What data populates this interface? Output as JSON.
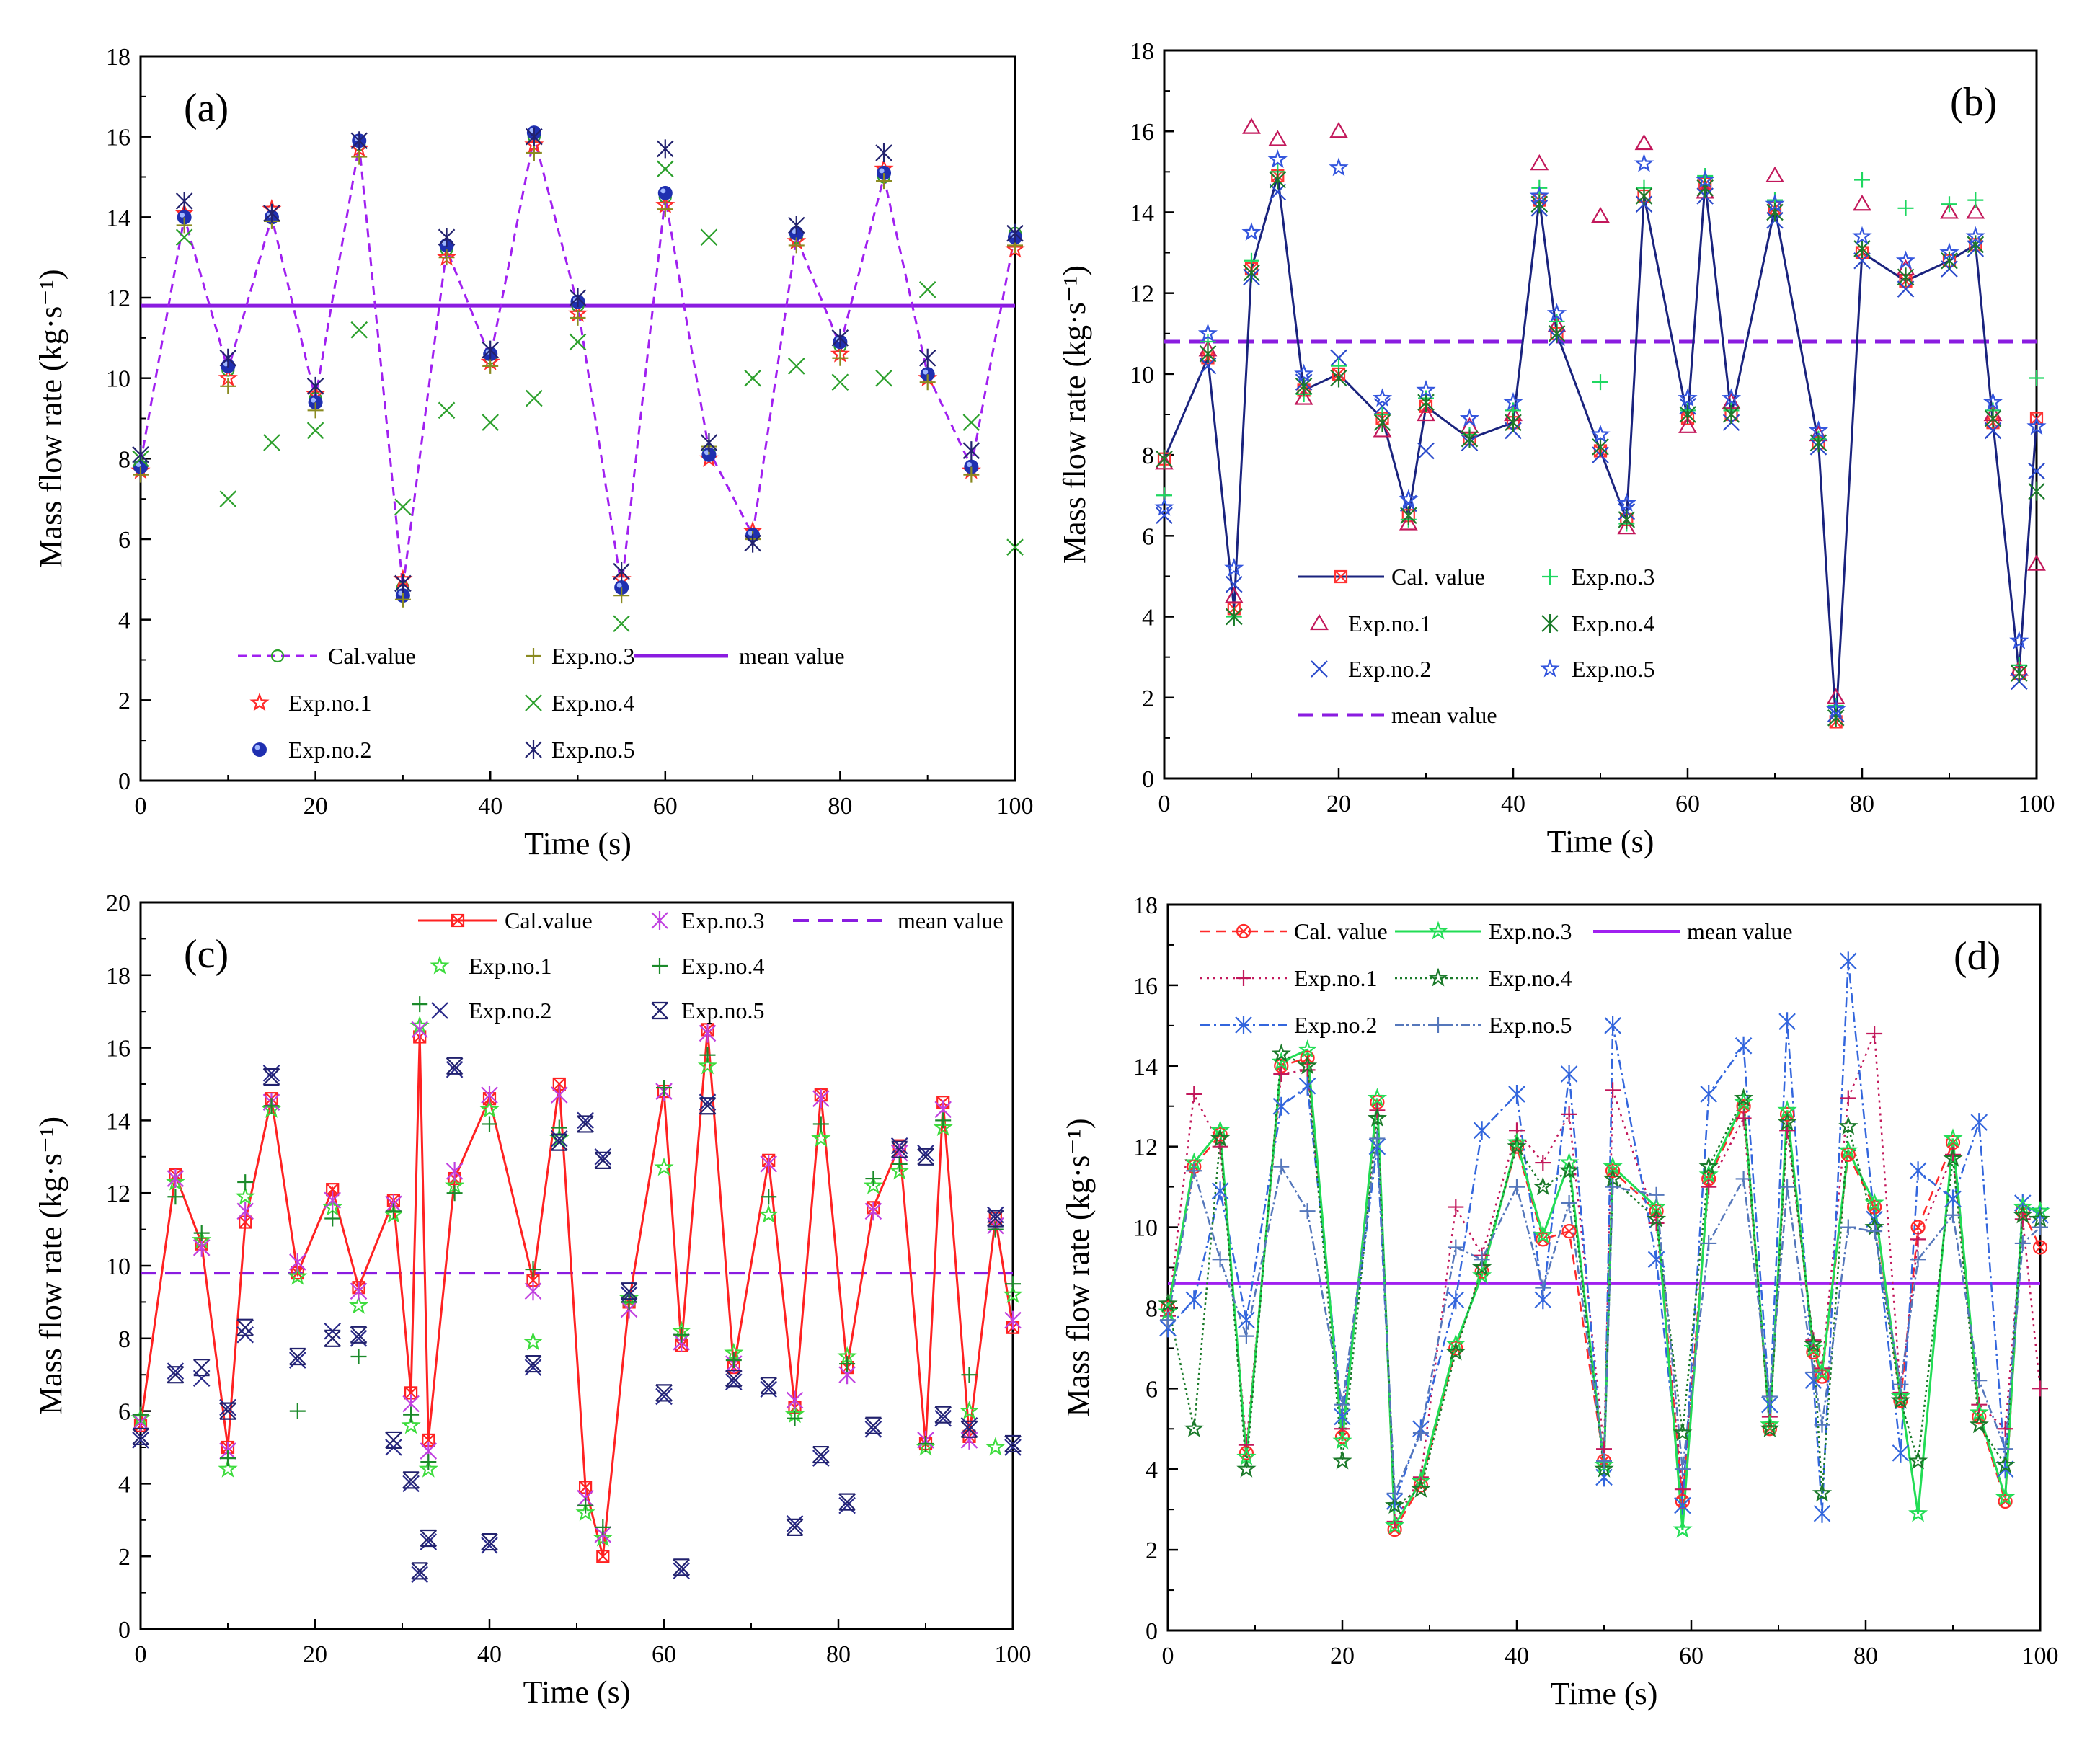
{
  "chart_data": [
    {
      "type": "line",
      "panel": "(a)",
      "xlabel": "Time (s)",
      "ylabel": "Mass flow rate (kg·s⁻¹)",
      "xlim": [
        0,
        100
      ],
      "ylim": [
        0,
        18
      ],
      "xticks": [
        0,
        20,
        40,
        60,
        80,
        100
      ],
      "yticks": [
        0,
        2,
        4,
        6,
        8,
        10,
        12,
        14,
        16,
        18
      ],
      "mean_value": 11.8,
      "legend_labels": [
        "Cal.value",
        "Exp.no.1",
        "Exp.no.2",
        "Exp.no.3",
        "Exp.no.4",
        "Exp.no.5",
        "mean value"
      ],
      "x": [
        0,
        5,
        10,
        15,
        20,
        25,
        30,
        35,
        40,
        45,
        50,
        55,
        60,
        65,
        70,
        75,
        80,
        85,
        90,
        95,
        100
      ],
      "series": [
        {
          "name": "Cal.value",
          "values": [
            7.9,
            14.0,
            10.2,
            14.0,
            9.5,
            15.8,
            4.8,
            13.2,
            10.5,
            16.0,
            11.8,
            4.8,
            14.5,
            8.2,
            6.1,
            13.5,
            10.8,
            15.0,
            10.1,
            7.8,
            13.6
          ]
        },
        {
          "name": "Exp.no.1",
          "values": [
            7.7,
            14.1,
            10.0,
            14.2,
            9.6,
            15.7,
            5.0,
            13.0,
            10.4,
            15.8,
            11.6,
            5.0,
            14.3,
            8.0,
            6.2,
            13.4,
            10.6,
            15.2,
            10.0,
            7.7,
            13.2
          ]
        },
        {
          "name": "Exp.no.2",
          "values": [
            7.8,
            14.0,
            10.3,
            14.0,
            9.4,
            15.9,
            4.6,
            13.3,
            10.6,
            16.1,
            11.9,
            4.8,
            14.6,
            8.1,
            6.1,
            13.6,
            10.9,
            15.1,
            10.1,
            7.8,
            13.5
          ]
        },
        {
          "name": "Exp.no.3",
          "values": [
            7.6,
            13.8,
            9.8,
            13.9,
            9.2,
            15.5,
            4.5,
            13.0,
            10.3,
            15.6,
            11.5,
            4.6,
            14.2,
            8.3,
            6.0,
            13.3,
            10.5,
            14.9,
            9.9,
            7.6,
            13.3
          ]
        },
        {
          "name": "Exp.no.4",
          "values": [
            8.0,
            13.5,
            7.0,
            8.4,
            8.7,
            11.2,
            6.8,
            9.2,
            8.9,
            9.5,
            10.9,
            3.9,
            15.2,
            13.5,
            10.0,
            10.3,
            9.9,
            10.0,
            12.2,
            8.9,
            5.8
          ]
        },
        {
          "name": "Exp.no.5",
          "values": [
            8.1,
            14.4,
            10.5,
            14.1,
            9.8,
            15.9,
            4.9,
            13.5,
            10.7,
            16.0,
            12.0,
            5.2,
            15.7,
            8.4,
            5.9,
            13.8,
            11.0,
            15.6,
            10.5,
            8.2,
            13.6
          ]
        }
      ]
    },
    {
      "type": "line",
      "panel": "(b)",
      "xlabel": "Time (s)",
      "ylabel": "Mass flow rate (kg·s⁻¹)",
      "xlim": [
        0,
        100
      ],
      "ylim": [
        0,
        18
      ],
      "xticks": [
        0,
        20,
        40,
        60,
        80,
        100
      ],
      "yticks": [
        0,
        2,
        4,
        6,
        8,
        10,
        12,
        14,
        16,
        18
      ],
      "mean_value": 10.8,
      "legend_labels": [
        "Cal. value",
        "Exp.no.1",
        "Exp.no.2",
        "Exp.no.3",
        "Exp.no.4",
        "Exp.no.5",
        "mean value"
      ],
      "x": [
        0,
        5,
        8,
        10,
        13,
        16,
        20,
        25,
        28,
        30,
        35,
        40,
        43,
        45,
        50,
        53,
        55,
        60,
        62,
        65,
        70,
        75,
        77,
        80,
        85,
        90,
        93,
        95,
        98,
        100
      ],
      "series": [
        {
          "name": "Cal. value",
          "values": [
            7.9,
            10.4,
            4.2,
            12.6,
            14.9,
            9.6,
            10.0,
            8.9,
            6.5,
            9.2,
            8.4,
            8.8,
            14.3,
            11.0,
            8.1,
            6.4,
            14.4,
            8.9,
            14.7,
            9.0,
            14.1,
            8.3,
            1.4,
            13.0,
            12.3,
            12.8,
            13.2,
            8.8,
            2.6,
            8.9
          ]
        },
        {
          "name": "Exp.no.1",
          "values": [
            7.8,
            10.6,
            4.5,
            16.1,
            15.8,
            9.4,
            16.0,
            8.6,
            6.3,
            9.0,
            8.7,
            9.0,
            15.2,
            11.2,
            13.9,
            6.2,
            15.7,
            8.7,
            14.5,
            9.3,
            14.9,
            8.5,
            2.0,
            14.2,
            12.6,
            14.0,
            14.0,
            9.0,
            2.7,
            5.3
          ]
        },
        {
          "name": "Exp.no.2",
          "values": [
            6.5,
            10.2,
            4.8,
            12.4,
            14.5,
            9.8,
            10.4,
            9.2,
            6.8,
            8.1,
            8.3,
            8.6,
            14.1,
            10.9,
            8.0,
            6.6,
            14.2,
            9.2,
            14.4,
            8.8,
            13.8,
            8.2,
            1.6,
            12.8,
            12.1,
            12.6,
            13.1,
            8.6,
            2.4,
            7.6
          ]
        },
        {
          "name": "Exp.no.3",
          "values": [
            7.0,
            10.8,
            4.0,
            12.8,
            15.0,
            9.5,
            10.2,
            9.0,
            6.4,
            9.4,
            8.5,
            9.1,
            14.6,
            11.3,
            9.8,
            6.3,
            14.6,
            9.1,
            14.9,
            9.1,
            14.3,
            8.4,
            1.8,
            14.8,
            14.1,
            14.2,
            14.3,
            9.1,
            2.8,
            9.9
          ]
        },
        {
          "name": "Exp.no.4",
          "values": [
            7.9,
            10.5,
            4.0,
            12.5,
            14.8,
            9.7,
            9.9,
            8.8,
            6.5,
            9.3,
            8.4,
            8.8,
            14.2,
            11.0,
            8.2,
            6.4,
            14.4,
            9.0,
            14.6,
            9.0,
            14.0,
            8.3,
            1.5,
            13.1,
            12.4,
            12.8,
            13.2,
            8.9,
            2.6,
            7.1
          ]
        },
        {
          "name": "Exp.no.5",
          "values": [
            6.7,
            11.0,
            5.2,
            13.5,
            15.3,
            10.0,
            15.1,
            9.4,
            6.9,
            9.6,
            8.9,
            9.3,
            14.4,
            11.5,
            8.5,
            6.8,
            15.2,
            9.4,
            14.8,
            9.4,
            14.2,
            8.6,
            1.7,
            13.4,
            12.8,
            13.0,
            13.4,
            9.3,
            3.4,
            8.7
          ]
        }
      ]
    },
    {
      "type": "line",
      "panel": "(c)",
      "xlabel": "Time (s)",
      "ylabel": "Mass flow rate (kg·s⁻¹)",
      "xlim": [
        0,
        100
      ],
      "ylim": [
        0,
        20
      ],
      "xticks": [
        0,
        20,
        40,
        60,
        80,
        100
      ],
      "yticks": [
        0,
        2,
        4,
        6,
        8,
        10,
        12,
        14,
        16,
        18,
        20
      ],
      "mean_value": 9.8,
      "legend_labels": [
        "Cal.value",
        "Exp.no.1",
        "Exp.no.2",
        "Exp.no.3",
        "Exp.no.4",
        "Exp.no.5",
        "mean value"
      ],
      "x": [
        0,
        4,
        7,
        10,
        12,
        15,
        18,
        22,
        25,
        29,
        31,
        32,
        33,
        36,
        40,
        45,
        48,
        51,
        53,
        56,
        60,
        62,
        65,
        68,
        72,
        75,
        78,
        81,
        84,
        87,
        90,
        92,
        95,
        98,
        100
      ],
      "series": [
        {
          "name": "Cal.value",
          "values": [
            5.6,
            12.5,
            10.6,
            5.0,
            11.2,
            14.6,
            9.8,
            12.1,
            9.4,
            11.8,
            6.5,
            16.3,
            5.2,
            12.4,
            14.6,
            9.6,
            15.0,
            3.9,
            2.0,
            9.0,
            14.8,
            7.8,
            16.5,
            7.2,
            12.9,
            6.1,
            14.7,
            7.2,
            11.6,
            13.3,
            5.1,
            14.5,
            5.3,
            11.3,
            8.3
          ]
        },
        {
          "name": "Exp.no.1",
          "values": [
            5.8,
            12.3,
            10.7,
            4.4,
            11.9,
            14.3,
            9.7,
            11.6,
            8.9,
            11.4,
            5.6,
            16.6,
            4.4,
            12.2,
            14.3,
            7.9,
            13.5,
            3.2,
            2.5,
            9.1,
            12.7,
            8.2,
            15.5,
            7.6,
            11.4,
            5.9,
            13.5,
            7.5,
            12.2,
            12.6,
            5.0,
            13.8,
            6.0,
            5.0,
            9.2
          ]
        },
        {
          "name": "Exp.no.2",
          "values": [
            5.2,
            7.1,
            6.9,
            6.1,
            8.1,
            15.3,
            7.4,
            8.2,
            8.0,
            5.0,
            4.0,
            1.5,
            2.4,
            15.4,
            2.3,
            7.2,
            13.5,
            14.0,
            13.0,
            9.2,
            6.4,
            1.6,
            14.5,
            6.8,
            6.6,
            2.9,
            4.7,
            3.4,
            5.5,
            13.3,
            13.1,
            5.8,
            5.6,
            11.4,
            5.0
          ]
        },
        {
          "name": "Exp.no.3",
          "values": [
            5.7,
            12.4,
            10.5,
            4.9,
            11.5,
            14.5,
            10.1,
            11.8,
            9.3,
            11.7,
            6.2,
            16.5,
            4.9,
            12.6,
            14.7,
            9.3,
            14.7,
            3.6,
            2.6,
            8.8,
            14.8,
            7.9,
            16.4,
            7.3,
            12.8,
            6.3,
            14.6,
            7.0,
            11.5,
            13.1,
            5.2,
            14.3,
            5.2,
            11.1,
            8.5
          ]
        },
        {
          "name": "Exp.no.4",
          "values": [
            5.9,
            11.9,
            10.9,
            4.7,
            12.3,
            14.4,
            6.0,
            11.3,
            7.5,
            11.5,
            5.9,
            17.2,
            4.6,
            12.0,
            13.9,
            9.9,
            13.8,
            3.4,
            2.8,
            9.0,
            14.9,
            8.1,
            15.8,
            7.4,
            11.9,
            5.8,
            13.9,
            7.3,
            12.4,
            12.8,
            5.1,
            14.0,
            7.0,
            11.0,
            9.5
          ]
        },
        {
          "name": "Exp.no.5",
          "values": [
            5.3,
            7.0,
            7.2,
            6.0,
            8.3,
            15.2,
            7.5,
            8.0,
            8.1,
            5.2,
            4.1,
            1.6,
            2.5,
            15.5,
            2.4,
            7.3,
            13.4,
            13.9,
            12.9,
            9.3,
            6.5,
            1.7,
            14.4,
            6.9,
            6.7,
            2.8,
            4.8,
            3.5,
            5.6,
            13.2,
            13.0,
            5.9,
            5.5,
            11.3,
            5.1
          ]
        }
      ]
    },
    {
      "type": "line",
      "panel": "(d)",
      "xlabel": "Time (s)",
      "ylabel": "Mass flow rate (kg·s⁻¹)",
      "xlim": [
        0,
        100
      ],
      "ylim": [
        0,
        18
      ],
      "xticks": [
        0,
        20,
        40,
        60,
        80,
        100
      ],
      "yticks": [
        0,
        2,
        4,
        6,
        8,
        10,
        12,
        14,
        16,
        18
      ],
      "mean_value": 8.6,
      "legend_labels": [
        "Cal. value",
        "Exp.no.1",
        "Exp.no.2",
        "Exp.no.3",
        "Exp.no.4",
        "Exp.no.5",
        "mean value"
      ],
      "x": [
        0,
        3,
        6,
        9,
        13,
        16,
        20,
        24,
        26,
        29,
        33,
        36,
        40,
        43,
        46,
        50,
        51,
        56,
        59,
        62,
        66,
        69,
        71,
        74,
        75,
        78,
        81,
        84,
        86,
        90,
        93,
        96,
        98,
        100
      ],
      "series": [
        {
          "name": "Cal. value",
          "values": [
            8.0,
            11.5,
            12.3,
            4.4,
            14.0,
            14.2,
            4.8,
            13.1,
            2.5,
            3.6,
            7.0,
            8.9,
            12.0,
            9.7,
            9.9,
            4.2,
            11.4,
            10.4,
            3.2,
            11.2,
            13.0,
            5.0,
            12.8,
            6.9,
            6.3,
            11.8,
            10.5,
            5.7,
            10.0,
            12.1,
            5.3,
            3.2,
            10.4,
            9.5
          ]
        },
        {
          "name": "Exp.no.1",
          "values": [
            7.8,
            13.3,
            12.0,
            4.6,
            13.8,
            13.9,
            5.0,
            12.9,
            2.7,
            3.8,
            10.5,
            9.3,
            12.4,
            11.6,
            12.8,
            4.5,
            13.4,
            10.1,
            3.5,
            11.0,
            12.7,
            5.3,
            12.4,
            7.2,
            6.5,
            13.2,
            14.8,
            5.9,
            9.7,
            11.8,
            5.6,
            5.0,
            10.2,
            6.0
          ]
        },
        {
          "name": "Exp.no.2",
          "values": [
            7.5,
            8.2,
            10.9,
            7.7,
            13.0,
            13.5,
            5.3,
            12.0,
            3.2,
            5.0,
            8.2,
            12.4,
            13.3,
            8.2,
            13.8,
            3.8,
            15.0,
            9.2,
            3.1,
            13.3,
            14.5,
            5.6,
            15.1,
            6.2,
            2.9,
            16.6,
            10.2,
            4.4,
            11.4,
            10.7,
            12.6,
            4.0,
            10.6,
            10.3
          ]
        },
        {
          "name": "Exp.no.3",
          "values": [
            7.9,
            11.6,
            12.4,
            4.3,
            14.1,
            14.4,
            4.7,
            13.2,
            2.6,
            3.7,
            7.1,
            8.8,
            12.1,
            9.8,
            11.6,
            4.1,
            11.5,
            10.5,
            2.5,
            11.3,
            13.1,
            5.1,
            12.9,
            7.0,
            6.4,
            11.9,
            10.6,
            5.8,
            2.9,
            12.2,
            5.4,
            3.3,
            10.5,
            10.4
          ]
        },
        {
          "name": "Exp.no.4",
          "values": [
            8.1,
            5.0,
            12.2,
            4.0,
            14.3,
            14.0,
            4.2,
            12.7,
            3.1,
            3.5,
            6.9,
            9.0,
            12.0,
            11.0,
            11.4,
            4.0,
            11.2,
            10.2,
            4.9,
            11.5,
            13.2,
            5.0,
            12.6,
            7.1,
            3.4,
            12.5,
            10.0,
            5.7,
            4.2,
            11.7,
            5.1,
            4.1,
            10.3,
            10.2
          ]
        },
        {
          "name": "Exp.no.5",
          "values": [
            7.7,
            11.4,
            9.2,
            7.3,
            11.5,
            10.4,
            5.6,
            12.2,
            3.4,
            4.9,
            9.5,
            9.2,
            11.0,
            8.5,
            10.6,
            4.2,
            11.0,
            10.8,
            4.0,
            9.6,
            11.2,
            5.8,
            11.0,
            6.4,
            5.1,
            10.0,
            9.9,
            6.1,
            9.2,
            10.3,
            6.2,
            4.5,
            9.6,
            10.0
          ]
        }
      ]
    }
  ]
}
